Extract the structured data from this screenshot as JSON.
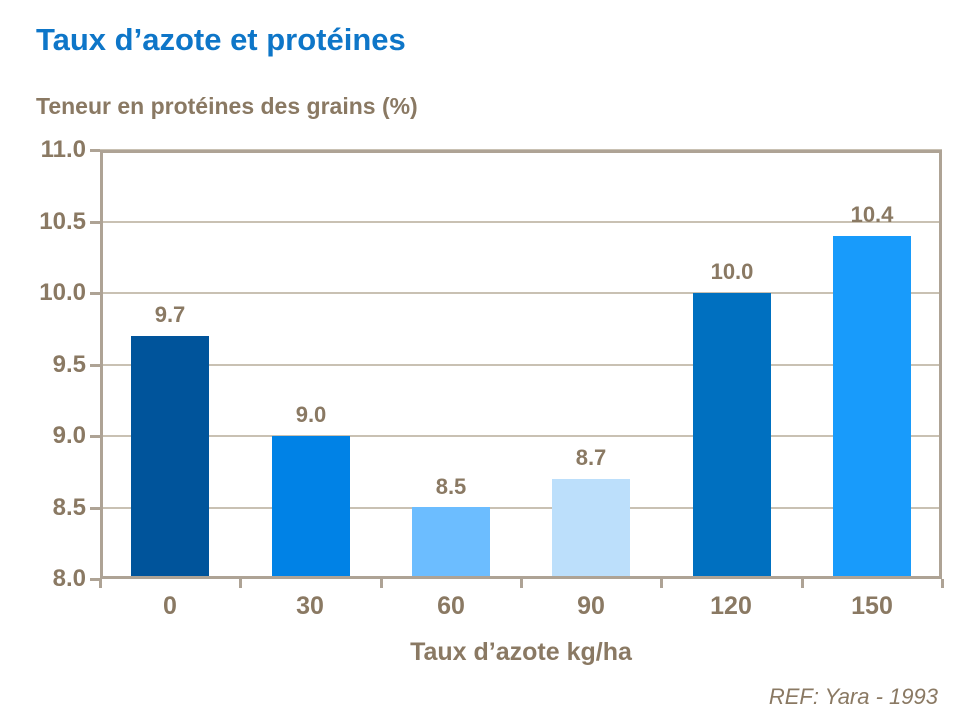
{
  "chart_data": {
    "type": "bar",
    "title": "Taux d’azote et protéines",
    "ylabel": "Teneur en protéines des grains (%)",
    "xlabel": "Taux d’azote kg/ha",
    "categories": [
      "0",
      "30",
      "60",
      "90",
      "120",
      "150"
    ],
    "values": [
      9.7,
      9.0,
      8.5,
      8.7,
      10.0,
      10.4
    ],
    "value_labels": [
      "9.7",
      "9.0",
      "8.5",
      "8.7",
      "10.0",
      "10.4"
    ],
    "bar_colors": [
      "#00549B",
      "#0082E6",
      "#6CBDFF",
      "#BCDFFB",
      "#0070C0",
      "#189BFB"
    ],
    "ylim": [
      8.0,
      11.0
    ],
    "ytick_labels": [
      "8.0",
      "8.5",
      "9.0",
      "9.5",
      "10.0",
      "10.5",
      "11.0"
    ],
    "ytick_values": [
      8.0,
      8.5,
      9.0,
      9.5,
      10.0,
      10.5,
      11.0
    ],
    "grid": true,
    "legend": false,
    "annotation": "REF: Yara - 1993",
    "colors": {
      "title_text": "#0E76C8",
      "axis_text": "#8A7963",
      "axis_border": "#AEA395",
      "gridline": "#C9C1B3",
      "background": "#FFFFFF"
    }
  }
}
